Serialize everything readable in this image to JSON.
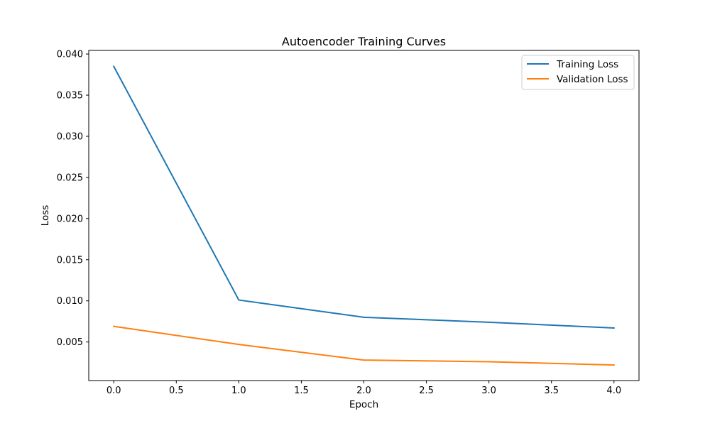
{
  "chart_data": {
    "type": "line",
    "title": "Autoencoder Training Curves",
    "xlabel": "Epoch",
    "ylabel": "Loss",
    "x": [
      0,
      1,
      2,
      3,
      4
    ],
    "series": [
      {
        "name": "Training Loss",
        "color": "#1f77b4",
        "values": [
          0.0385,
          0.0101,
          0.008,
          0.0074,
          0.0067
        ]
      },
      {
        "name": "Validation Loss",
        "color": "#ff7f0e",
        "values": [
          0.0069,
          0.0047,
          0.0028,
          0.0026,
          0.0022
        ]
      }
    ],
    "xlim": [
      -0.2,
      4.2
    ],
    "ylim": [
      0.00031,
      0.04044
    ],
    "xticks": [
      0.0,
      0.5,
      1.0,
      1.5,
      2.0,
      2.5,
      3.0,
      3.5,
      4.0
    ],
    "xtick_labels": [
      "0.0",
      "0.5",
      "1.0",
      "1.5",
      "2.0",
      "2.5",
      "3.0",
      "3.5",
      "4.0"
    ],
    "yticks": [
      0.005,
      0.01,
      0.015,
      0.02,
      0.025,
      0.03,
      0.035,
      0.04
    ],
    "ytick_labels": [
      "0.005",
      "0.010",
      "0.015",
      "0.020",
      "0.025",
      "0.030",
      "0.035",
      "0.040"
    ],
    "grid": false,
    "legend_position": "top-right"
  }
}
